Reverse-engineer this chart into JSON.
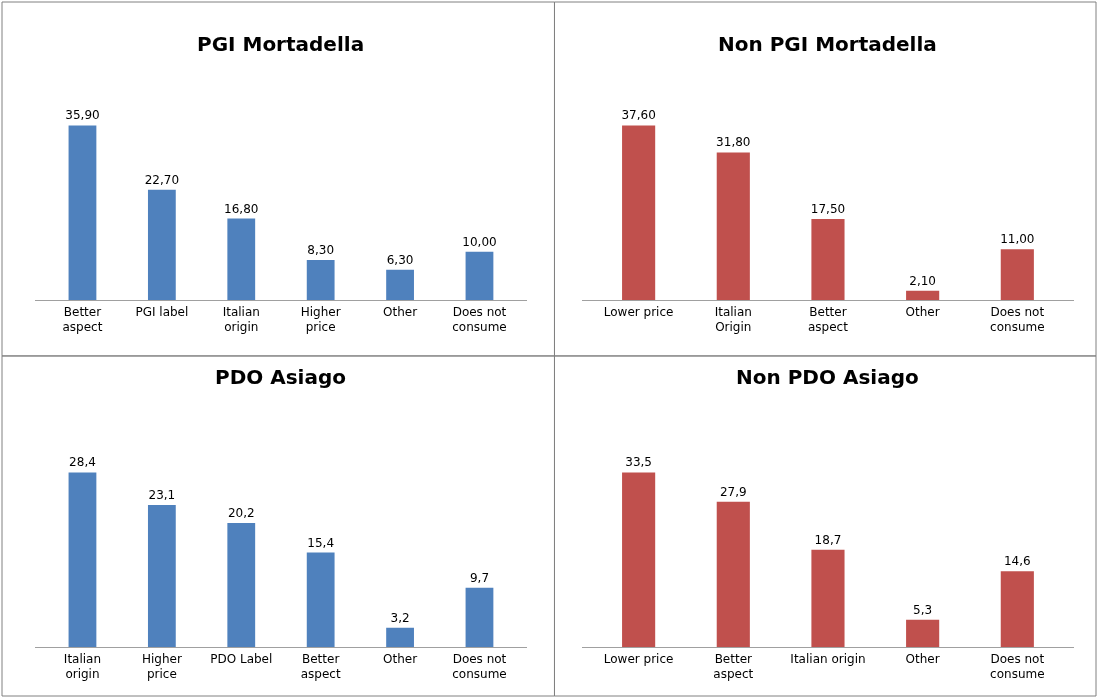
{
  "chart_data": [
    {
      "type": "bar",
      "title": "PGI Mortadella",
      "categories": [
        "Better\naspect",
        "PGI label",
        "Italian\norigin",
        "Higher\nprice",
        "Other",
        "Does not\nconsume"
      ],
      "values": [
        35.9,
        22.7,
        16.8,
        8.3,
        6.3,
        10.0
      ],
      "value_labels": [
        "35,90",
        "22,70",
        "16,80",
        "8,30",
        "6,30",
        "10,00"
      ],
      "color": "#4f81bd"
    },
    {
      "type": "bar",
      "title": "Non PGI Mortadella",
      "categories": [
        "Lower price",
        "Italian\nOrigin",
        "Better\naspect",
        "Other",
        "Does not\nconsume"
      ],
      "values": [
        37.6,
        31.8,
        17.5,
        2.1,
        11.0
      ],
      "value_labels": [
        "37,60",
        "31,80",
        "17,50",
        "2,10",
        "11,00"
      ],
      "color": "#c0504d"
    },
    {
      "type": "bar",
      "title": "PDO Asiago",
      "categories": [
        "Italian\norigin",
        "Higher\nprice",
        "PDO Label",
        "Better\naspect",
        "Other",
        "Does not\nconsume"
      ],
      "values": [
        28.4,
        23.1,
        20.2,
        15.4,
        3.2,
        9.7
      ],
      "value_labels": [
        "28,4",
        "23,1",
        "20,2",
        "15,4",
        "3,2",
        "9,7"
      ],
      "color": "#4f81bd"
    },
    {
      "type": "bar",
      "title": "Non PDO Asiago",
      "categories": [
        "Lower price",
        "Better\naspect",
        "Italian origin",
        "Other",
        "Does not\nconsume"
      ],
      "values": [
        33.5,
        27.9,
        18.7,
        5.3,
        14.6
      ],
      "value_labels": [
        "33,5",
        "27,9",
        "18,7",
        "5,3",
        "14,6"
      ],
      "color": "#c0504d"
    }
  ]
}
